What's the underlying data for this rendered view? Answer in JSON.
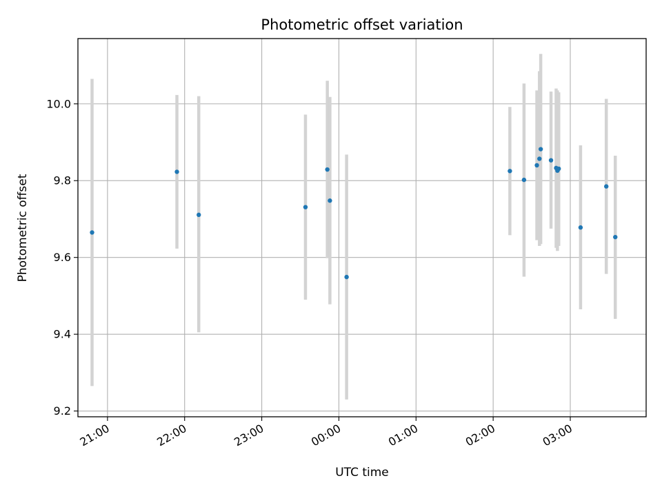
{
  "chart_data": {
    "type": "scatter",
    "title": "Photometric offset variation",
    "xlabel": "UTC time",
    "ylabel": "Photometric offset",
    "x_axis": {
      "kind": "time",
      "range": [
        "20:37",
        "03:59"
      ],
      "ticks": [
        "21:00",
        "22:00",
        "23:00",
        "00:00",
        "01:00",
        "02:00",
        "03:00"
      ]
    },
    "y_axis": {
      "range": [
        9.185,
        10.17
      ],
      "ticks": [
        9.2,
        9.4,
        9.6,
        9.8,
        10.0
      ],
      "tick_labels": [
        "9.2",
        "9.4",
        "9.6",
        "9.8",
        "10.0"
      ]
    },
    "grid": true,
    "colors": {
      "marker": "#1f77b4",
      "error_bar": "#d3d3d3",
      "grid": "#b0b0b0"
    },
    "series": [
      {
        "points": [
          {
            "time": "20:48",
            "y": 9.665,
            "ylow": 9.265,
            "yhigh": 10.065
          },
          {
            "time": "21:54",
            "y": 9.823,
            "ylow": 9.623,
            "yhigh": 10.023
          },
          {
            "time": "22:11",
            "y": 9.711,
            "ylow": 9.405,
            "yhigh": 10.02
          },
          {
            "time": "23:34",
            "y": 9.731,
            "ylow": 9.49,
            "yhigh": 9.972
          },
          {
            "time": "23:51",
            "y": 9.829,
            "ylow": 9.598,
            "yhigh": 10.06
          },
          {
            "time": "23:53",
            "y": 9.748,
            "ylow": 9.478,
            "yhigh": 10.018
          },
          {
            "time": "00:06",
            "y": 9.549,
            "ylow": 9.23,
            "yhigh": 9.868
          },
          {
            "time": "02:13",
            "y": 9.825,
            "ylow": 9.658,
            "yhigh": 9.992
          },
          {
            "time": "02:24",
            "y": 9.802,
            "ylow": 9.55,
            "yhigh": 10.053
          },
          {
            "time": "02:34",
            "y": 9.84,
            "ylow": 9.645,
            "yhigh": 10.035
          },
          {
            "time": "02:36",
            "y": 9.857,
            "ylow": 9.63,
            "yhigh": 10.085
          },
          {
            "time": "02:37",
            "y": 9.882,
            "ylow": 9.635,
            "yhigh": 10.13
          },
          {
            "time": "02:45",
            "y": 9.853,
            "ylow": 9.675,
            "yhigh": 10.032
          },
          {
            "time": "02:49",
            "y": 9.833,
            "ylow": 9.625,
            "yhigh": 10.04
          },
          {
            "time": "02:50",
            "y": 9.826,
            "ylow": 9.617,
            "yhigh": 10.035
          },
          {
            "time": "02:51",
            "y": 9.831,
            "ylow": 9.63,
            "yhigh": 10.03
          },
          {
            "time": "03:08",
            "y": 9.678,
            "ylow": 9.465,
            "yhigh": 9.892
          },
          {
            "time": "03:28",
            "y": 9.785,
            "ylow": 9.557,
            "yhigh": 10.013
          },
          {
            "time": "03:35",
            "y": 9.653,
            "ylow": 9.44,
            "yhigh": 9.865
          }
        ]
      }
    ]
  }
}
